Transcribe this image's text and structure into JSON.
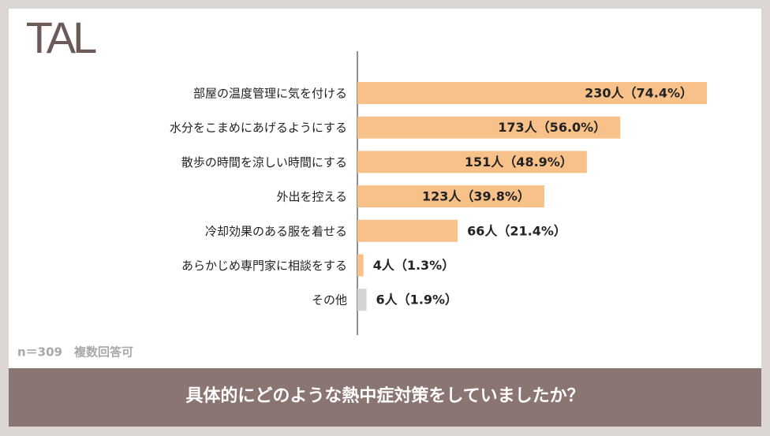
{
  "chart_data": {
    "type": "bar",
    "logo": "TAL",
    "categories": [
      "部屋の温度管理に気を付ける",
      "水分をこまめにあげるようにする",
      "散歩の時間を涼しい時間にする",
      "外出を控える",
      "冷却効果のある服を着せる",
      "あらかじめ専門家に相談をする",
      "その他"
    ],
    "values": [
      230,
      173,
      151,
      123,
      66,
      4,
      6
    ],
    "value_labels": [
      "230人（74.4%）",
      "173人（56.0%）",
      "151人（48.9%）",
      "123人（39.8%）",
      "66人（21.4%）",
      "4人（1.3%）",
      "6人（1.9%）"
    ],
    "colors": [
      "#f8c189",
      "#f8c189",
      "#f8c189",
      "#f8c189",
      "#f8c189",
      "#f8c189",
      "#d4d4d4"
    ],
    "note": "n＝309　複数回答可",
    "title": "具体的にどのような熱中症対策をしていましたか？"
  }
}
